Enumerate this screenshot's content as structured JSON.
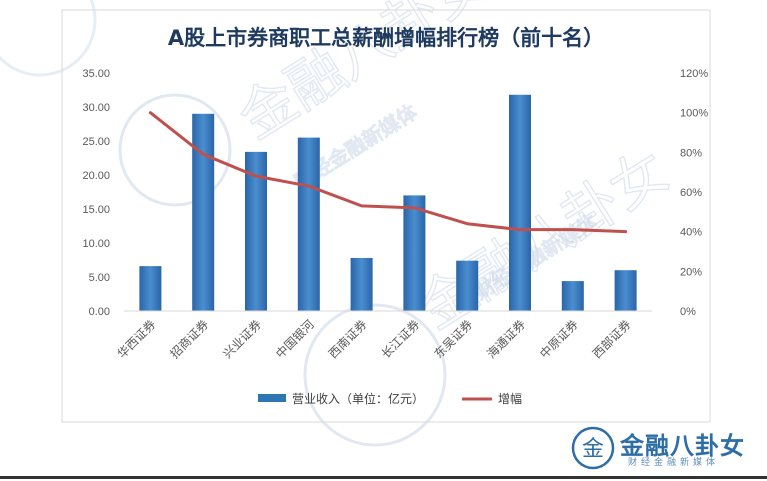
{
  "chart_data": {
    "type": "bar",
    "title": "A股上市券商职工总薪酬增幅排行榜（前十名）",
    "categories": [
      "华西证券",
      "招商证券",
      "兴业证券",
      "中国银河",
      "西南证券",
      "长江证券",
      "东吴证券",
      "海通证券",
      "中原证券",
      "西部证券"
    ],
    "series": [
      {
        "name": "营业收入（单位：亿元）",
        "type": "bar",
        "axis": "left",
        "color": "#2e75b6",
        "values": [
          6.6,
          29.0,
          23.4,
          25.5,
          7.8,
          17.0,
          7.4,
          31.8,
          4.4,
          6.0
        ]
      },
      {
        "name": "增幅",
        "type": "line",
        "axis": "right",
        "color": "#c0504d",
        "values": [
          1.0,
          0.79,
          0.68,
          0.63,
          0.53,
          0.52,
          0.44,
          0.41,
          0.41,
          0.4
        ]
      }
    ],
    "ylim": [
      0,
      35
    ],
    "y2lim": [
      0,
      1.2
    ],
    "yticks": [
      "0.00",
      "5.00",
      "10.00",
      "15.00",
      "20.00",
      "25.00",
      "30.00",
      "35.00"
    ],
    "y2ticks": [
      "0%",
      "20%",
      "40%",
      "60%",
      "80%",
      "100%",
      "120%"
    ],
    "grid": false,
    "legend_position": "bottom"
  },
  "watermark": {
    "texts": [
      "金融八卦女",
      "财经金融新媒体"
    ],
    "color": "#c9d6e8"
  },
  "brand": {
    "logo_char": "金",
    "name": "金融八卦女",
    "tagline": "财经金融新媒体",
    "color": "#2e6ea6"
  }
}
